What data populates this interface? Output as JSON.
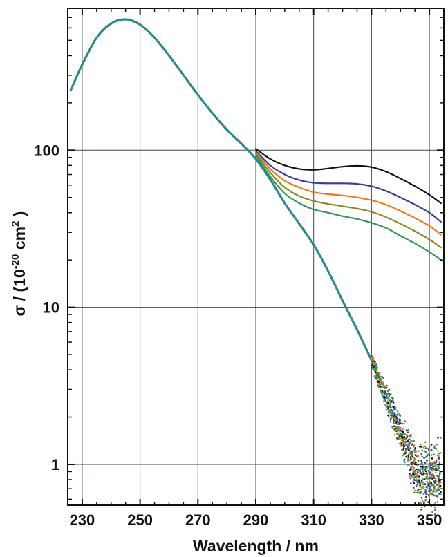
{
  "chart_data": {
    "type": "line",
    "title": "",
    "xlabel": "Wavelength / nm",
    "ylabel": {
      "symbol": "σ / (10",
      "exp": "-20",
      "unit": " cm",
      "unit_exp": "2",
      "close": " )"
    },
    "xlim": [
      225,
      355
    ],
    "ylim": [
      0.55,
      800
    ],
    "yscale": "log",
    "grid": true,
    "legend": "none",
    "x_ticks": [
      230,
      250,
      270,
      290,
      310,
      330,
      350
    ],
    "x_tick_labels": [
      "230",
      "250",
      "270",
      "290",
      "310",
      "330",
      "350"
    ],
    "y_ticks": [
      1,
      10,
      100
    ],
    "y_tick_labels": [
      "1",
      "10",
      "100"
    ],
    "series": [
      {
        "color": "#111111",
        "x": [
          290,
          295,
          300,
          305,
          310,
          315,
          320,
          325,
          330,
          335,
          340,
          345,
          350,
          354
        ],
        "y": [
          102,
          88,
          80,
          76,
          75,
          76.5,
          78.5,
          79.5,
          78,
          73,
          66,
          59,
          52,
          46
        ]
      },
      {
        "color": "#3a3aa0",
        "x": [
          290,
          295,
          300,
          305,
          310,
          315,
          320,
          325,
          330,
          335,
          340,
          345,
          350,
          354
        ],
        "y": [
          99,
          80,
          70,
          64.5,
          62,
          61.5,
          61.5,
          61,
          59,
          55,
          50,
          45,
          40,
          35
        ]
      },
      {
        "color": "#f07a1a",
        "x": [
          290,
          295,
          300,
          305,
          310,
          315,
          320,
          325,
          330,
          335,
          340,
          345,
          350,
          354
        ],
        "y": [
          97,
          76,
          64,
          58,
          54,
          52.5,
          51.5,
          50,
          48,
          45,
          41,
          37,
          33,
          29
        ]
      },
      {
        "color": "#8a8a1e",
        "x": [
          290,
          295,
          300,
          305,
          310,
          315,
          320,
          325,
          330,
          335,
          340,
          345,
          350,
          354
        ],
        "y": [
          95,
          72,
          58,
          51,
          47.5,
          45.5,
          44,
          42.5,
          40.5,
          37.5,
          34,
          30.5,
          27,
          24
        ]
      },
      {
        "color": "#2e9a55",
        "x": [
          290,
          295,
          300,
          305,
          310,
          315,
          320,
          325,
          330,
          335,
          340,
          345,
          350,
          354
        ],
        "y": [
          93,
          68,
          53,
          46,
          42,
          40,
          38,
          36.5,
          34.5,
          32,
          28.5,
          25.5,
          22.5,
          20
        ]
      },
      {
        "color": "#2a8a8a",
        "x": [
          226,
          230,
          235,
          240,
          245,
          250,
          255,
          260,
          265,
          270,
          275,
          280,
          285,
          290,
          295,
          300,
          305,
          310,
          315,
          320,
          325,
          330
        ],
        "y": [
          240,
          350,
          520,
          640,
          680,
          630,
          520,
          400,
          300,
          225,
          172,
          135,
          110,
          88,
          65,
          46,
          34,
          25,
          17,
          11,
          7.2,
          4.6
        ]
      }
    ],
    "scatter_noise": {
      "x_range": [
        330,
        354
      ],
      "colors": [
        "#111111",
        "#3a3aa0",
        "#f07a1a",
        "#8a8a1e",
        "#2e9a55",
        "#2a8a8a"
      ]
    }
  }
}
